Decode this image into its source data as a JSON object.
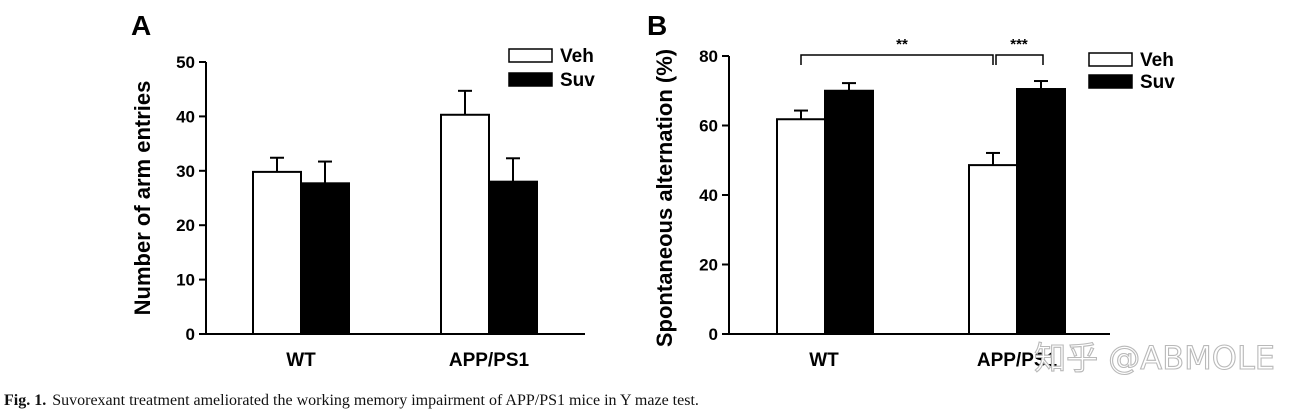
{
  "chart_data": [
    {
      "type": "bar",
      "panel": "A",
      "ylabel": "Number of arm entries",
      "categories": [
        "WT",
        "APP/PS1"
      ],
      "ylim": [
        0,
        50
      ],
      "yticks": [
        0,
        10,
        20,
        30,
        40,
        50
      ],
      "series": [
        {
          "name": "Veh",
          "fill": "#ffffff",
          "values": [
            29.8,
            40.3
          ],
          "errors": [
            2.6,
            4.4
          ]
        },
        {
          "name": "Suv",
          "fill": "#000000",
          "values": [
            27.7,
            28.0
          ],
          "errors": [
            4.0,
            4.3
          ]
        }
      ],
      "legend": "top-right",
      "annotations": []
    },
    {
      "type": "bar",
      "panel": "B",
      "ylabel": "Spontaneous alternation (%)",
      "categories": [
        "WT",
        "APP/PS1"
      ],
      "ylim": [
        0,
        80
      ],
      "yticks": [
        0,
        20,
        40,
        60,
        80
      ],
      "series": [
        {
          "name": "Veh",
          "fill": "#ffffff",
          "values": [
            61.8,
            48.6
          ],
          "errors": [
            2.5,
            3.5
          ]
        },
        {
          "name": "Suv",
          "fill": "#000000",
          "values": [
            70.0,
            70.5
          ],
          "errors": [
            2.2,
            2.3
          ]
        }
      ],
      "legend": "top-right",
      "annotations": [
        {
          "label": "**",
          "from": "WT Veh",
          "to": "APP/PS1 Veh"
        },
        {
          "label": "***",
          "from": "APP/PS1 Veh",
          "to": "APP/PS1 Suv"
        }
      ]
    }
  ],
  "caption": {
    "label": "Fig. 1.",
    "text": "Suvorexant treatment ameliorated the working memory impairment of APP/PS1 mice in Y maze test."
  },
  "watermark": "知乎 @ABMOLE"
}
